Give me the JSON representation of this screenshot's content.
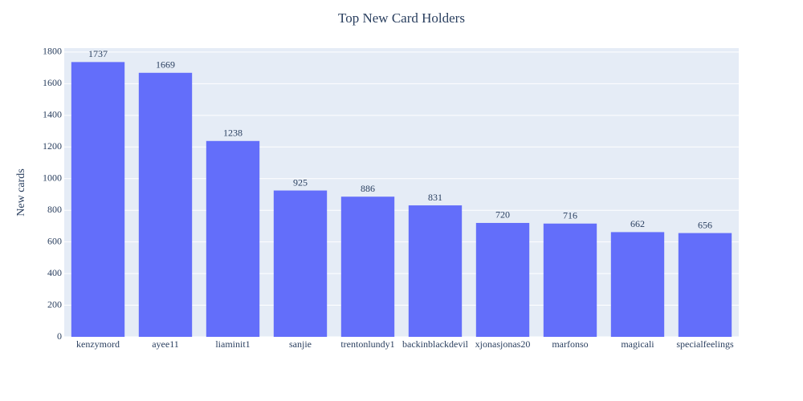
{
  "chart_data": {
    "type": "bar",
    "title": "Top New Card Holders",
    "y_label": "New cards",
    "categories": [
      "kenzymord",
      "ayee11",
      "liaminit1",
      "sanjie",
      "trentonlundy1",
      "backinblackdevil",
      "xjonasjonas20",
      "marfonso",
      "magicali",
      "specialfeelings"
    ],
    "values": [
      1737,
      1669,
      1238,
      925,
      886,
      831,
      720,
      716,
      662,
      656
    ],
    "color": "#636efa",
    "plot_background": "#e5ecf6",
    "ylim": [
      0,
      1825
    ],
    "yticks": [
      0,
      200,
      400,
      600,
      800,
      1000,
      1200,
      1400,
      1600,
      1800
    ],
    "grid": true
  }
}
